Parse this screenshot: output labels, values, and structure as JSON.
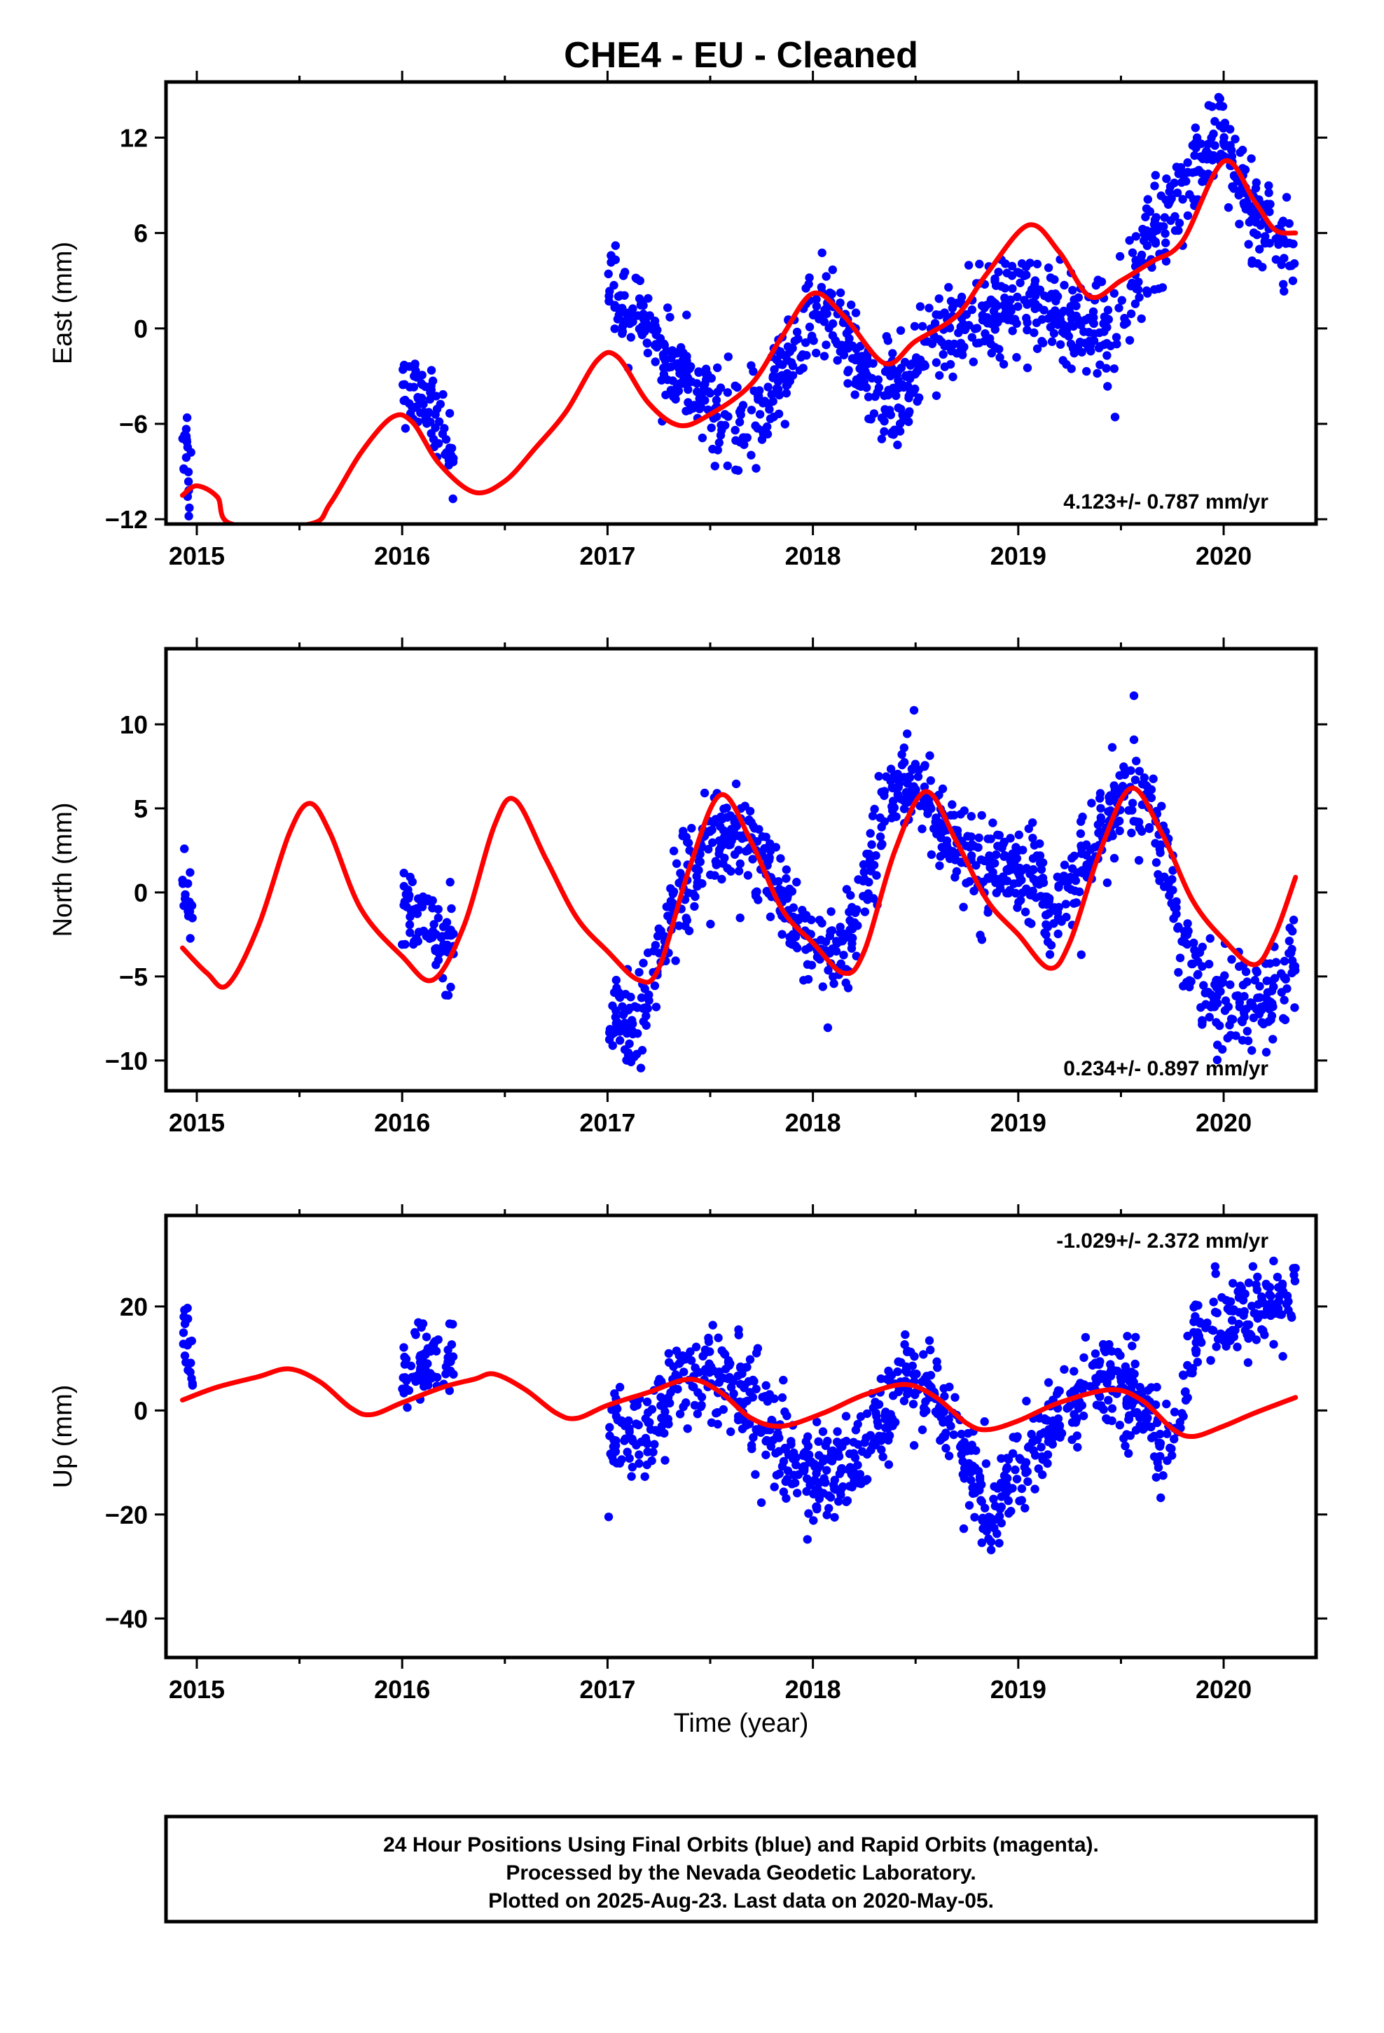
{
  "title": "CHE4  - EU - Cleaned",
  "xlabel": "Time (year)",
  "colors": {
    "data": "#0000ff",
    "model": "#ff0000",
    "frame": "#000000"
  },
  "footer": {
    "line1": "24 Hour Positions Using Final Orbits (blue) and Rapid Orbits (magenta).",
    "line2": "Processed by the Nevada Geodetic Laboratory.",
    "line3": "Plotted on 2025-Aug-23. Last data on 2020-May-05."
  },
  "chart_data": [
    {
      "type": "scatter",
      "name": "east",
      "ylabel": "East (mm)",
      "rate": "4.123+/- 0.787 mm/yr",
      "xlim": [
        2014.85,
        2020.45
      ],
      "ylim": [
        -12.3,
        15.5
      ],
      "xticks": [
        2015,
        2016,
        2017,
        2018,
        2019,
        2020
      ],
      "yticks": [
        -12,
        -6,
        0,
        6,
        12
      ],
      "data_segments": [
        {
          "range": [
            2014.93,
            2014.98
          ],
          "points": [
            [
              2014.93,
              -7.5
            ],
            [
              2014.945,
              -6.0
            ],
            [
              2014.955,
              -9.0
            ],
            [
              2014.965,
              -11.5
            ],
            [
              2014.975,
              -6.5
            ]
          ]
        },
        {
          "range": [
            2016.0,
            2016.25
          ],
          "points": [
            [
              2016.0,
              -4
            ],
            [
              2016.1,
              -4.8
            ],
            [
              2016.2,
              -6.5
            ],
            [
              2016.25,
              -7.5
            ]
          ]
        },
        {
          "range": [
            2017.0,
            2020.35
          ],
          "points": [
            [
              2017.0,
              2.5
            ],
            [
              2017.15,
              1.0
            ],
            [
              2017.3,
              -2.0
            ],
            [
              2017.45,
              -4.0
            ],
            [
              2017.6,
              -7.0
            ],
            [
              2017.75,
              -5.0
            ],
            [
              2017.9,
              -1.5
            ],
            [
              2018.05,
              1.0
            ],
            [
              2018.2,
              -1.5
            ],
            [
              2018.35,
              -4.5
            ],
            [
              2018.5,
              -3.0
            ],
            [
              2018.7,
              0.0
            ],
            [
              2018.9,
              1.5
            ],
            [
              2019.1,
              1.5
            ],
            [
              2019.3,
              0.5
            ],
            [
              2019.45,
              0.0
            ],
            [
              2019.6,
              4.5
            ],
            [
              2019.75,
              8.0
            ],
            [
              2019.9,
              11.0
            ],
            [
              2020.0,
              12.5
            ],
            [
              2020.1,
              8.5
            ],
            [
              2020.25,
              6.0
            ],
            [
              2020.35,
              5.5
            ]
          ]
        }
      ],
      "model": [
        [
          2014.93,
          -10.5
        ],
        [
          2015.0,
          -9.9
        ],
        [
          2015.1,
          -10.6
        ],
        [
          2015.17,
          -12.3
        ],
        [
          2015.55,
          -12.3
        ],
        [
          2015.65,
          -11.0
        ],
        [
          2015.8,
          -7.8
        ],
        [
          2015.95,
          -5.6
        ],
        [
          2016.05,
          -5.9
        ],
        [
          2016.18,
          -8.5
        ],
        [
          2016.35,
          -10.3
        ],
        [
          2016.5,
          -9.6
        ],
        [
          2016.65,
          -7.5
        ],
        [
          2016.8,
          -5.2
        ],
        [
          2016.95,
          -2.0
        ],
        [
          2017.05,
          -1.8
        ],
        [
          2017.2,
          -4.7
        ],
        [
          2017.35,
          -6.1
        ],
        [
          2017.5,
          -5.4
        ],
        [
          2017.7,
          -3.5
        ],
        [
          2017.85,
          -0.5
        ],
        [
          2018.0,
          2.2
        ],
        [
          2018.15,
          0.8
        ],
        [
          2018.35,
          -2.2
        ],
        [
          2018.5,
          -0.8
        ],
        [
          2018.7,
          0.8
        ],
        [
          2018.85,
          3.5
        ],
        [
          2019.05,
          6.5
        ],
        [
          2019.2,
          4.8
        ],
        [
          2019.35,
          2.0
        ],
        [
          2019.5,
          3.0
        ],
        [
          2019.65,
          4.2
        ],
        [
          2019.8,
          5.5
        ],
        [
          2020.0,
          10.5
        ],
        [
          2020.15,
          8.0
        ],
        [
          2020.25,
          6.2
        ],
        [
          2020.35,
          6.0
        ]
      ]
    },
    {
      "type": "scatter",
      "name": "north",
      "ylabel": "North (mm)",
      "rate": "0.234+/- 0.897 mm/yr",
      "xlim": [
        2014.85,
        2020.45
      ],
      "ylim": [
        -11.8,
        14.5
      ],
      "xticks": [
        2015,
        2016,
        2017,
        2018,
        2019,
        2020
      ],
      "yticks": [
        -10,
        -5,
        0,
        5,
        10
      ],
      "data_segments": [
        {
          "range": [
            2014.93,
            2014.98
          ],
          "points": [
            [
              2014.93,
              0.5
            ],
            [
              2014.96,
              -1.0
            ]
          ]
        },
        {
          "range": [
            2016.0,
            2016.25
          ],
          "points": [
            [
              2016.0,
              -1.0
            ],
            [
              2016.15,
              -2.0
            ],
            [
              2016.25,
              -3.5
            ]
          ]
        },
        {
          "range": [
            2017.0,
            2020.35
          ],
          "points": [
            [
              2017.0,
              -7.0
            ],
            [
              2017.15,
              -8.0
            ],
            [
              2017.25,
              -4.0
            ],
            [
              2017.35,
              0.5
            ],
            [
              2017.5,
              3.0
            ],
            [
              2017.65,
              3.5
            ],
            [
              2017.8,
              1.0
            ],
            [
              2017.95,
              -3.0
            ],
            [
              2018.15,
              -3.5
            ],
            [
              2018.3,
              2.0
            ],
            [
              2018.4,
              7.0
            ],
            [
              2018.55,
              6.0
            ],
            [
              2018.7,
              2.0
            ],
            [
              2018.9,
              1.5
            ],
            [
              2019.1,
              0.5
            ],
            [
              2019.2,
              -1.0
            ],
            [
              2019.35,
              2.5
            ],
            [
              2019.5,
              6.0
            ],
            [
              2019.65,
              5.5
            ],
            [
              2019.8,
              -2.5
            ],
            [
              2019.95,
              -6.5
            ],
            [
              2020.15,
              -7.0
            ],
            [
              2020.35,
              -4.0
            ]
          ]
        }
      ],
      "model": [
        [
          2014.93,
          -3.3
        ],
        [
          2015.05,
          -4.8
        ],
        [
          2015.15,
          -5.5
        ],
        [
          2015.3,
          -2.0
        ],
        [
          2015.45,
          3.5
        ],
        [
          2015.55,
          5.3
        ],
        [
          2015.65,
          3.5
        ],
        [
          2015.8,
          -1.0
        ],
        [
          2016.0,
          -3.8
        ],
        [
          2016.15,
          -5.2
        ],
        [
          2016.3,
          -2.0
        ],
        [
          2016.45,
          4.0
        ],
        [
          2016.55,
          5.5
        ],
        [
          2016.7,
          2.0
        ],
        [
          2016.85,
          -1.5
        ],
        [
          2017.0,
          -3.5
        ],
        [
          2017.15,
          -5.2
        ],
        [
          2017.25,
          -4.5
        ],
        [
          2017.4,
          1.5
        ],
        [
          2017.55,
          5.8
        ],
        [
          2017.7,
          3.0
        ],
        [
          2017.85,
          -1.0
        ],
        [
          2018.0,
          -3.0
        ],
        [
          2018.15,
          -4.8
        ],
        [
          2018.25,
          -3.5
        ],
        [
          2018.4,
          2.5
        ],
        [
          2018.55,
          6.0
        ],
        [
          2018.7,
          3.0
        ],
        [
          2018.85,
          -0.5
        ],
        [
          2019.0,
          -2.5
        ],
        [
          2019.15,
          -4.5
        ],
        [
          2019.25,
          -3.0
        ],
        [
          2019.4,
          2.5
        ],
        [
          2019.55,
          6.2
        ],
        [
          2019.7,
          3.5
        ],
        [
          2019.85,
          -0.5
        ],
        [
          2020.0,
          -2.8
        ],
        [
          2020.15,
          -4.3
        ],
        [
          2020.25,
          -2.5
        ],
        [
          2020.35,
          0.9
        ]
      ]
    },
    {
      "type": "scatter",
      "name": "up",
      "ylabel": "Up (mm)",
      "rate": "-1.029+/- 2.372 mm/yr",
      "xlim": [
        2014.85,
        2020.45
      ],
      "ylim": [
        -47.5,
        37.5
      ],
      "xticks": [
        2015,
        2016,
        2017,
        2018,
        2019,
        2020
      ],
      "yticks": [
        -40,
        -20,
        0,
        20
      ],
      "data_segments": [
        {
          "range": [
            2014.93,
            2014.98
          ],
          "points": [
            [
              2014.93,
              12.0
            ],
            [
              2014.96,
              16.0
            ],
            [
              2014.98,
              6.0
            ]
          ]
        },
        {
          "range": [
            2016.0,
            2016.25
          ],
          "points": [
            [
              2016.0,
              6.0
            ],
            [
              2016.15,
              10.0
            ],
            [
              2016.25,
              8.0
            ]
          ]
        },
        {
          "range": [
            2017.0,
            2020.35
          ],
          "points": [
            [
              2017.0,
              -6.0
            ],
            [
              2017.2,
              -4.0
            ],
            [
              2017.35,
              6.0
            ],
            [
              2017.5,
              8.0
            ],
            [
              2017.65,
              4.0
            ],
            [
              2017.8,
              -4.0
            ],
            [
              2018.0,
              -12.0
            ],
            [
              2018.2,
              -10.0
            ],
            [
              2018.35,
              -2.0
            ],
            [
              2018.45,
              6.0
            ],
            [
              2018.6,
              2.0
            ],
            [
              2018.75,
              -10.0
            ],
            [
              2018.85,
              -20.0
            ],
            [
              2019.0,
              -12.0
            ],
            [
              2019.15,
              -4.0
            ],
            [
              2019.3,
              4.0
            ],
            [
              2019.45,
              6.0
            ],
            [
              2019.6,
              2.0
            ],
            [
              2019.75,
              -10.0
            ],
            [
              2019.85,
              12.0
            ],
            [
              2020.0,
              18.0
            ],
            [
              2020.2,
              20.0
            ],
            [
              2020.35,
              22.0
            ]
          ]
        }
      ],
      "model": [
        [
          2014.93,
          2.0
        ],
        [
          2015.1,
          4.5
        ],
        [
          2015.3,
          6.5
        ],
        [
          2015.45,
          8.0
        ],
        [
          2015.6,
          5.5
        ],
        [
          2015.75,
          0.5
        ],
        [
          2015.85,
          -0.8
        ],
        [
          2016.0,
          1.5
        ],
        [
          2016.2,
          4.5
        ],
        [
          2016.35,
          6.0
        ],
        [
          2016.45,
          7.0
        ],
        [
          2016.6,
          4.0
        ],
        [
          2016.75,
          -0.5
        ],
        [
          2016.85,
          -1.5
        ],
        [
          2017.0,
          1.0
        ],
        [
          2017.2,
          3.5
        ],
        [
          2017.4,
          6.0
        ],
        [
          2017.55,
          3.5
        ],
        [
          2017.7,
          -1.5
        ],
        [
          2017.85,
          -3.0
        ],
        [
          2018.05,
          -0.5
        ],
        [
          2018.25,
          3.0
        ],
        [
          2018.45,
          5.0
        ],
        [
          2018.6,
          2.5
        ],
        [
          2018.75,
          -2.5
        ],
        [
          2018.85,
          -3.7
        ],
        [
          2019.0,
          -2.0
        ],
        [
          2019.2,
          1.5
        ],
        [
          2019.45,
          4.0
        ],
        [
          2019.6,
          2.0
        ],
        [
          2019.75,
          -3.5
        ],
        [
          2019.85,
          -5.0
        ],
        [
          2020.0,
          -3.0
        ],
        [
          2020.15,
          -0.5
        ],
        [
          2020.35,
          2.5
        ]
      ]
    }
  ]
}
